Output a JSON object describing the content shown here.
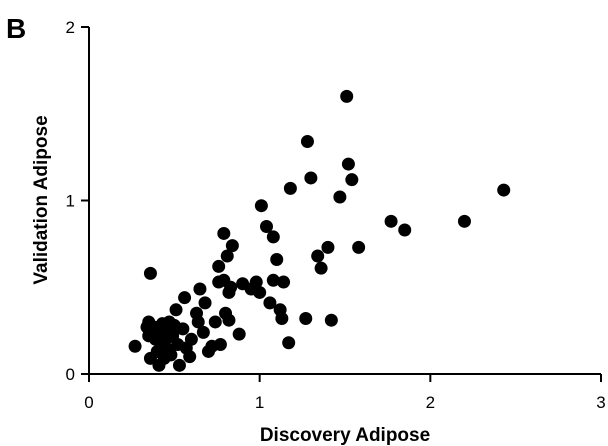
{
  "panel_label": "B",
  "chart_data": {
    "type": "scatter",
    "xlabel": "Discovery Adipose",
    "ylabel": "Validation Adipose",
    "xlim": [
      0,
      3
    ],
    "ylim": [
      0,
      2
    ],
    "x_ticks": [
      "0",
      "1",
      "2",
      "3"
    ],
    "y_ticks": [
      "0",
      "1",
      "2"
    ],
    "grid": false,
    "marker_color": "#000000",
    "points": [
      [
        0.27,
        0.16
      ],
      [
        0.34,
        0.27
      ],
      [
        0.35,
        0.3
      ],
      [
        0.35,
        0.22
      ],
      [
        0.36,
        0.09
      ],
      [
        0.36,
        0.58
      ],
      [
        0.38,
        0.27
      ],
      [
        0.39,
        0.2
      ],
      [
        0.4,
        0.13
      ],
      [
        0.41,
        0.05
      ],
      [
        0.42,
        0.23
      ],
      [
        0.43,
        0.29
      ],
      [
        0.44,
        0.09
      ],
      [
        0.44,
        0.18
      ],
      [
        0.45,
        0.26
      ],
      [
        0.46,
        0.21
      ],
      [
        0.47,
        0.3
      ],
      [
        0.47,
        0.14
      ],
      [
        0.48,
        0.11
      ],
      [
        0.49,
        0.22
      ],
      [
        0.5,
        0.28
      ],
      [
        0.51,
        0.37
      ],
      [
        0.52,
        0.17
      ],
      [
        0.53,
        0.05
      ],
      [
        0.55,
        0.26
      ],
      [
        0.56,
        0.44
      ],
      [
        0.57,
        0.15
      ],
      [
        0.59,
        0.1
      ],
      [
        0.6,
        0.2
      ],
      [
        0.63,
        0.35
      ],
      [
        0.64,
        0.3
      ],
      [
        0.65,
        0.49
      ],
      [
        0.67,
        0.24
      ],
      [
        0.68,
        0.41
      ],
      [
        0.7,
        0.13
      ],
      [
        0.72,
        0.16
      ],
      [
        0.74,
        0.3
      ],
      [
        0.76,
        0.53
      ],
      [
        0.76,
        0.62
      ],
      [
        0.77,
        0.17
      ],
      [
        0.79,
        0.81
      ],
      [
        0.79,
        0.54
      ],
      [
        0.8,
        0.35
      ],
      [
        0.81,
        0.68
      ],
      [
        0.82,
        0.47
      ],
      [
        0.82,
        0.31
      ],
      [
        0.83,
        0.5
      ],
      [
        0.84,
        0.74
      ],
      [
        0.88,
        0.23
      ],
      [
        0.9,
        0.52
      ],
      [
        0.95,
        0.49
      ],
      [
        0.98,
        0.53
      ],
      [
        1.0,
        0.47
      ],
      [
        1.01,
        0.97
      ],
      [
        1.04,
        0.85
      ],
      [
        1.06,
        0.41
      ],
      [
        1.08,
        0.79
      ],
      [
        1.08,
        0.54
      ],
      [
        1.1,
        0.66
      ],
      [
        1.12,
        0.37
      ],
      [
        1.13,
        0.32
      ],
      [
        1.14,
        0.53
      ],
      [
        1.17,
        0.18
      ],
      [
        1.18,
        1.07
      ],
      [
        1.27,
        0.32
      ],
      [
        1.28,
        1.34
      ],
      [
        1.3,
        1.13
      ],
      [
        1.34,
        0.68
      ],
      [
        1.36,
        0.61
      ],
      [
        1.4,
        0.73
      ],
      [
        1.42,
        0.31
      ],
      [
        1.47,
        1.02
      ],
      [
        1.51,
        1.6
      ],
      [
        1.52,
        1.21
      ],
      [
        1.54,
        1.12
      ],
      [
        1.58,
        0.73
      ],
      [
        1.77,
        0.88
      ],
      [
        1.85,
        0.83
      ],
      [
        2.2,
        0.88
      ],
      [
        2.43,
        1.06
      ]
    ]
  }
}
